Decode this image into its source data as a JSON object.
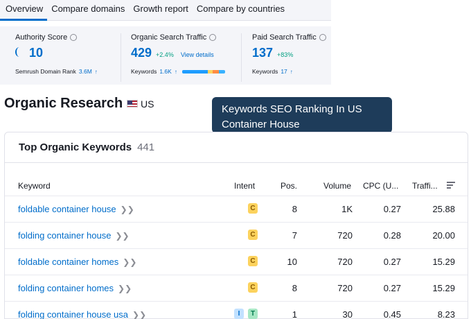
{
  "tabs": [
    "Overview",
    "Compare domains",
    "Growth report",
    "Compare by countries"
  ],
  "metrics": {
    "authority": {
      "label": "Authority Score",
      "value": "10",
      "sub_label": "Semrush Domain Rank",
      "sub_value": "3.6M"
    },
    "organic": {
      "label": "Organic Search Traffic",
      "value": "429",
      "change": "+2.4%",
      "link": "View details",
      "sub_label": "Keywords",
      "sub_value": "1.6K"
    },
    "paid": {
      "label": "Paid Search Traffic",
      "value": "137",
      "change": "+83%",
      "sub_label": "Keywords",
      "sub_value": "17"
    }
  },
  "colors": {
    "accent": "#006dca",
    "positive": "#009f81",
    "tooltip_bg": "#1e3c5a",
    "intent_c": "#fcd25d",
    "intent_i": "#c2e1ff",
    "intent_t": "#a6e7c4"
  },
  "header": {
    "title": "Organic Research",
    "country": "US"
  },
  "tooltip": {
    "line1": "Keywords SEO Ranking In US",
    "line2": "Container House"
  },
  "table": {
    "title": "Top Organic Keywords",
    "count": "441",
    "columns": {
      "keyword": "Keyword",
      "intent": "Intent",
      "pos": "Pos.",
      "volume": "Volume",
      "cpc": "CPC (U...",
      "traffic": "Traffi..."
    },
    "rows": [
      {
        "keyword": "foldable container house",
        "intent": [
          "C"
        ],
        "pos": "8",
        "volume": "1K",
        "cpc": "0.27",
        "traffic": "25.88"
      },
      {
        "keyword": "folding container house",
        "intent": [
          "C"
        ],
        "pos": "7",
        "volume": "720",
        "cpc": "0.28",
        "traffic": "20.00"
      },
      {
        "keyword": "foldable container homes",
        "intent": [
          "C"
        ],
        "pos": "10",
        "volume": "720",
        "cpc": "0.27",
        "traffic": "15.29"
      },
      {
        "keyword": "folding container homes",
        "intent": [
          "C"
        ],
        "pos": "8",
        "volume": "720",
        "cpc": "0.27",
        "traffic": "15.29"
      },
      {
        "keyword": "folding container house usa",
        "intent": [
          "I",
          "T"
        ],
        "pos": "1",
        "volume": "30",
        "cpc": "0.45",
        "traffic": "8.23"
      }
    ]
  }
}
